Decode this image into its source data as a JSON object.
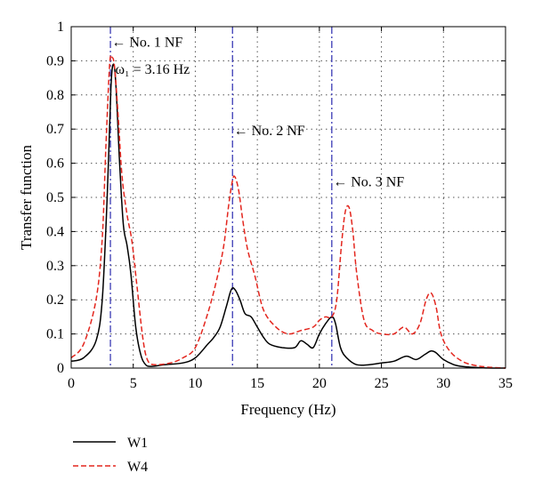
{
  "chart_data": {
    "type": "line",
    "title": "",
    "xlabel": "Frequency (Hz)",
    "ylabel": "Transfer function",
    "xlim": [
      0,
      35
    ],
    "ylim": [
      0,
      1
    ],
    "xticks": [
      0,
      5,
      10,
      15,
      20,
      25,
      30,
      35
    ],
    "xtick_labels": [
      "0",
      "5",
      "10",
      "15",
      "20",
      "25",
      "30",
      "35"
    ],
    "yticks": [
      0,
      0.1,
      0.2,
      0.3,
      0.4,
      0.5,
      0.6,
      0.7,
      0.8,
      0.9,
      1
    ],
    "ytick_labels": [
      "0",
      "0.1",
      "0.2",
      "0.3",
      "0.4",
      "0.5",
      "0.6",
      "0.7",
      "0.8",
      "0.9",
      "1"
    ],
    "grid": true,
    "legend_position": "below chart, left",
    "series": [
      {
        "name": "W1",
        "color": "#000000",
        "style": "solid",
        "x": [
          0,
          1,
          2,
          2.5,
          2.9,
          3.2,
          3.4,
          3.6,
          3.9,
          4.2,
          4.5,
          4.8,
          5.2,
          5.6,
          6.0,
          6.5,
          7.5,
          9.0,
          10.0,
          11.0,
          11.5,
          12.0,
          12.5,
          12.9,
          13.2,
          13.6,
          14.0,
          14.5,
          15.0,
          15.5,
          16.0,
          17.0,
          18.0,
          18.5,
          19.0,
          19.5,
          20.0,
          20.5,
          21.0,
          21.3,
          21.7,
          22.2,
          23.0,
          24.0,
          25.0,
          26.0,
          27.0,
          27.8,
          28.5,
          29.0,
          29.4,
          30.0,
          31.0,
          32.0,
          33.0,
          34.0,
          35.0
        ],
        "y": [
          0.02,
          0.03,
          0.08,
          0.2,
          0.5,
          0.82,
          0.89,
          0.83,
          0.6,
          0.42,
          0.36,
          0.28,
          0.12,
          0.04,
          0.01,
          0.005,
          0.01,
          0.015,
          0.03,
          0.07,
          0.09,
          0.12,
          0.18,
          0.23,
          0.23,
          0.2,
          0.16,
          0.15,
          0.12,
          0.09,
          0.07,
          0.06,
          0.06,
          0.08,
          0.07,
          0.06,
          0.1,
          0.13,
          0.15,
          0.13,
          0.06,
          0.03,
          0.01,
          0.01,
          0.015,
          0.02,
          0.035,
          0.025,
          0.04,
          0.05,
          0.045,
          0.025,
          0.008,
          0.003,
          0.001,
          0.0,
          0.0
        ]
      },
      {
        "name": "W4",
        "color": "#e3261e",
        "style": "dashed",
        "x": [
          0,
          1,
          2,
          2.5,
          2.8,
          3.1,
          3.3,
          3.5,
          3.8,
          4.1,
          4.5,
          4.9,
          5.3,
          5.8,
          6.2,
          6.8,
          8.0,
          9.0,
          10.0,
          11.0,
          11.8,
          12.3,
          12.7,
          13.0,
          13.2,
          13.5,
          13.8,
          14.2,
          14.8,
          15.5,
          16.5,
          17.5,
          18.5,
          19.5,
          20.0,
          20.5,
          21.0,
          21.4,
          21.8,
          22.1,
          22.4,
          22.7,
          23.0,
          23.6,
          24.3,
          25.0,
          26.0,
          26.8,
          27.5,
          28.1,
          28.6,
          29.0,
          29.4,
          29.8,
          30.5,
          31.5,
          32.5,
          33.5,
          35.0
        ],
        "y": [
          0.03,
          0.07,
          0.2,
          0.38,
          0.65,
          0.89,
          0.91,
          0.88,
          0.73,
          0.56,
          0.45,
          0.37,
          0.24,
          0.08,
          0.02,
          0.01,
          0.015,
          0.03,
          0.06,
          0.16,
          0.27,
          0.36,
          0.48,
          0.55,
          0.56,
          0.52,
          0.44,
          0.35,
          0.27,
          0.17,
          0.12,
          0.1,
          0.11,
          0.12,
          0.14,
          0.15,
          0.15,
          0.2,
          0.37,
          0.46,
          0.47,
          0.4,
          0.28,
          0.14,
          0.11,
          0.1,
          0.1,
          0.12,
          0.1,
          0.13,
          0.2,
          0.22,
          0.18,
          0.1,
          0.05,
          0.02,
          0.008,
          0.003,
          0.0
        ]
      }
    ],
    "vlines": [
      {
        "x": 3.16,
        "color": "#3b3bb5",
        "style": "dashdot"
      },
      {
        "x": 13.0,
        "color": "#3b3bb5",
        "style": "dashdot"
      },
      {
        "x": 21.0,
        "color": "#3b3bb5",
        "style": "dashdot"
      }
    ],
    "annotations": [
      {
        "text": "← No. 1 NF",
        "x": 3.25,
        "y": 0.955
      },
      {
        "text": "ω₁ = 3.16 Hz",
        "x": 3.55,
        "y": 0.875
      },
      {
        "text": "← No. 2 NF",
        "x": 13.1,
        "y": 0.695
      },
      {
        "text": "← No. 3 NF",
        "x": 21.1,
        "y": 0.545
      }
    ],
    "legend": [
      {
        "label": "W1",
        "color": "#000000",
        "style": "solid"
      },
      {
        "label": "W4",
        "color": "#e3261e",
        "style": "dashed"
      }
    ]
  }
}
